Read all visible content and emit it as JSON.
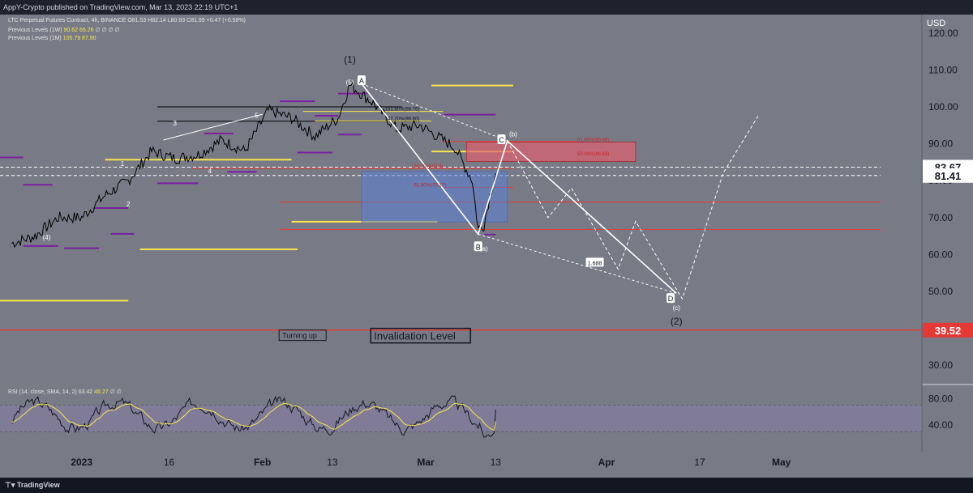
{
  "publish_bar": {
    "text": "AppY-Crypto published on TradingView.com, Mar 13, 2023 22:19 UTC+1"
  },
  "legend": {
    "symbol_line": "LTC Perpetual Futures Contract, 4h, BINANCE",
    "ohlc": "O81.53 H82.14 L80.93 C81.99 +0.47 (+0.58%)",
    "prev_levels_1w_label": "Previous Levels (1W)",
    "prev_levels_1w_values": "90.62 65.26",
    "prev_levels_1w_symbols": "∅ ∅ ∅ ∅",
    "prev_levels_1m_label": "Previous Levels (1M)",
    "prev_levels_1m_values": "105.79 87.90",
    "rsi_label": "RSI (14, close, SMA, 14, 2)",
    "rsi_values": "63.42",
    "rsi_sma": "46.27",
    "rsi_symbols": "∅ ∅"
  },
  "currency": "USD",
  "footer": {
    "brand": "TradingView"
  },
  "colors": {
    "background": "#787b86",
    "panel_dark": "#1e222d",
    "price_line": "#000000",
    "wave_line": "#ffffff",
    "red_line": "#e53935",
    "yellow_line": "#f5e74b",
    "purple_line": "#7b1fa2",
    "blue_zone": "#5b7fd6",
    "red_zone": "#e06070"
  },
  "chart_data": {
    "type": "line",
    "title": "LTC Perpetual Futures Contract, 4h, BINANCE",
    "ylabel": "USD",
    "y_axis_ticks": [
      120,
      110,
      100,
      90,
      80,
      70,
      60,
      50,
      40,
      30
    ],
    "x_tick_labels": [
      "2023",
      "16",
      "Feb",
      "13",
      "Mar",
      "13",
      "Apr",
      "17",
      "May"
    ],
    "ylim": [
      25,
      125
    ],
    "price_series_approx": [
      {
        "date": "2022-12-20",
        "close": 63
      },
      {
        "date": "2022-12-24",
        "close": 65
      },
      {
        "date": "2022-12-28",
        "close": 70
      },
      {
        "date": "2023-01-01",
        "close": 70
      },
      {
        "date": "2023-01-05",
        "close": 76
      },
      {
        "date": "2023-01-09",
        "close": 80
      },
      {
        "date": "2023-01-13",
        "close": 88
      },
      {
        "date": "2023-01-17",
        "close": 86
      },
      {
        "date": "2023-01-21",
        "close": 87
      },
      {
        "date": "2023-01-25",
        "close": 91
      },
      {
        "date": "2023-01-29",
        "close": 88
      },
      {
        "date": "2023-02-02",
        "close": 99
      },
      {
        "date": "2023-02-06",
        "close": 97
      },
      {
        "date": "2023-02-10",
        "close": 92
      },
      {
        "date": "2023-02-14",
        "close": 97
      },
      {
        "date": "2023-02-16",
        "close": 106
      },
      {
        "date": "2023-02-20",
        "close": 101
      },
      {
        "date": "2023-02-24",
        "close": 94
      },
      {
        "date": "2023-02-28",
        "close": 95
      },
      {
        "date": "2023-03-02",
        "close": 93
      },
      {
        "date": "2023-03-06",
        "close": 89
      },
      {
        "date": "2023-03-09",
        "close": 80
      },
      {
        "date": "2023-03-10",
        "close": 67
      },
      {
        "date": "2023-03-11",
        "close": 68
      },
      {
        "date": "2023-03-12",
        "close": 76
      },
      {
        "date": "2023-03-13",
        "close": 82
      }
    ],
    "wave_labels": [
      {
        "text": "(1)",
        "date": "2023-02-16",
        "price": 112
      },
      {
        "text": "A",
        "date": "2023-02-18",
        "price": 107
      },
      {
        "text": "B",
        "date": "2023-03-10",
        "price": 62
      },
      {
        "text": "(a)",
        "date": "2023-03-11",
        "price": 61
      },
      {
        "text": "C",
        "date": "2023-03-14",
        "price": 91
      },
      {
        "text": "(b)",
        "date": "2023-03-16",
        "price": 92
      },
      {
        "text": "D",
        "date": "2023-04-12",
        "price": 48
      },
      {
        "text": "(c)",
        "date": "2023-04-13",
        "price": 45
      },
      {
        "text": "(2)",
        "date": "2023-04-13",
        "price": 41
      },
      {
        "text": "1",
        "date": "2023-01-08",
        "price": 84
      },
      {
        "text": "2",
        "date": "2023-01-09",
        "price": 73
      },
      {
        "text": "3",
        "date": "2023-01-17",
        "price": 95
      },
      {
        "text": "4",
        "date": "2023-01-23",
        "price": 82
      },
      {
        "text": "5",
        "date": "2023-01-31",
        "price": 97
      },
      {
        "text": "(4)",
        "date": "2022-12-26",
        "price": 64
      },
      {
        "text": "(5)",
        "date": "2023-02-16",
        "price": 106
      }
    ],
    "fib_labels": [
      {
        "text": "161.80%(98.76)",
        "price": 98.76
      },
      {
        "text": "147.20%(98.60)",
        "price": 96.2
      },
      {
        "text": "61.80%(90.46)",
        "price": 90.46
      },
      {
        "text": "50.00%(86.63)",
        "price": 86.63
      },
      {
        "text": "50.00%(83.3)",
        "price": 83.3
      },
      {
        "text": "61.80%(78.17)",
        "price": 78.17
      }
    ],
    "price_badges": [
      {
        "value": "83.67",
        "kind": "last"
      },
      {
        "value": "81.41",
        "kind": "current"
      },
      {
        "value": "39.52",
        "kind": "invalidation"
      }
    ],
    "ratio_label": "1.688",
    "annotations": [
      "Turning up",
      "Invalidation Level"
    ],
    "rsi": {
      "ylim": [
        0,
        100
      ],
      "ticks": [
        80,
        40
      ],
      "last": 63.42,
      "sma_last": 46.27
    }
  }
}
